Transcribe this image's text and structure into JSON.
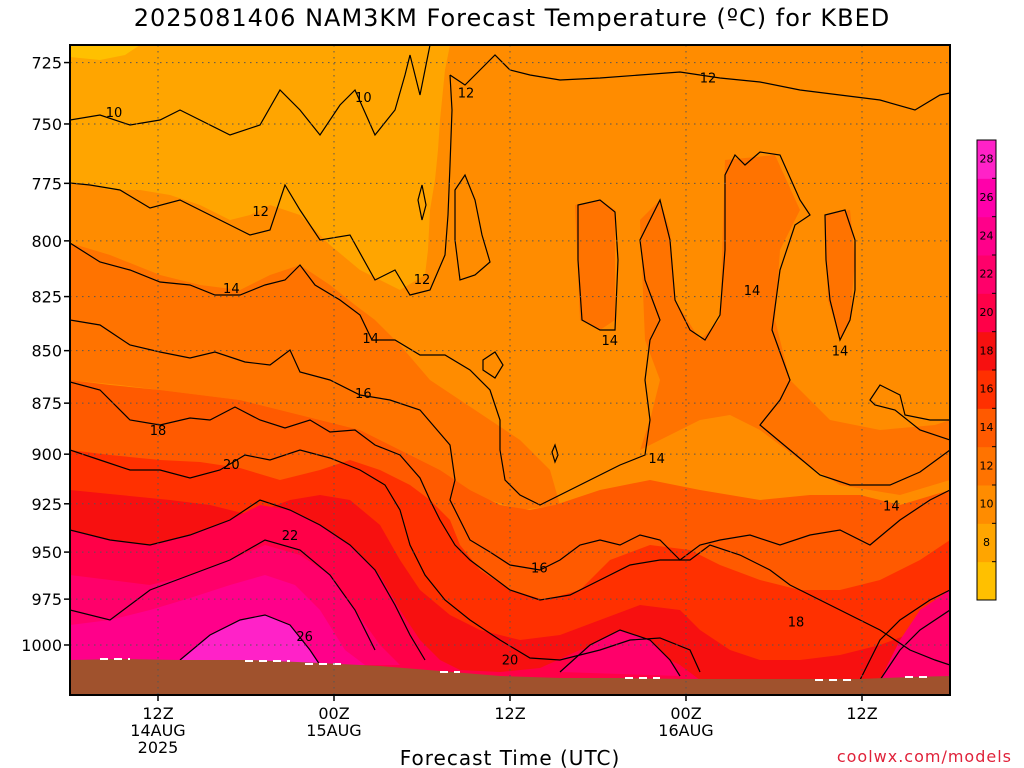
{
  "title": "2025081406 NAM3KM Forecast Temperature (ºC) for KBED",
  "credit": "coolwx.com/models",
  "chart_data": {
    "type": "heatmap",
    "title": "2025081406 NAM3KM Forecast Temperature (ºC) for KBED",
    "xlabel": "Forecast Time (UTC)",
    "ylabel": "",
    "x_unit": "forecast hour",
    "xlim": [
      0,
      60
    ],
    "ylim": [
      718,
      1028
    ],
    "y_scale": "log-pressure (hPa)",
    "y_ticks": [
      725,
      750,
      775,
      800,
      825,
      850,
      875,
      900,
      925,
      950,
      975,
      1000
    ],
    "x_ticks": [
      {
        "x": 6,
        "labels": [
          "12Z",
          "14AUG",
          "2025"
        ]
      },
      {
        "x": 18,
        "labels": [
          "00Z",
          "15AUG"
        ]
      },
      {
        "x": 30,
        "labels": [
          "12Z"
        ]
      },
      {
        "x": 42,
        "labels": [
          "00Z",
          "16AUG"
        ]
      },
      {
        "x": 54,
        "labels": [
          "12Z"
        ]
      }
    ],
    "grid": true,
    "colorbar": {
      "labels": [
        8,
        10,
        12,
        14,
        16,
        18,
        20,
        22,
        24,
        26,
        28
      ],
      "colors": [
        "#ffc000",
        "#ffa500",
        "#ff8c00",
        "#ff7300",
        "#ff5a00",
        "#ff3000",
        "#f71010",
        "#ff0048",
        "#ff006a",
        "#ff008a",
        "#ff00aa",
        "#ff22c8"
      ]
    },
    "contour_labels": [
      {
        "text": "10",
        "x": 3.0,
        "p": 745
      },
      {
        "text": "10",
        "x": 20.0,
        "p": 739
      },
      {
        "text": "12",
        "x": 27.0,
        "p": 737
      },
      {
        "text": "12",
        "x": 43.5,
        "p": 731
      },
      {
        "text": "12",
        "x": 13.0,
        "p": 787
      },
      {
        "text": "12",
        "x": 24.0,
        "p": 817
      },
      {
        "text": "14",
        "x": 11.0,
        "p": 821
      },
      {
        "text": "14",
        "x": 20.5,
        "p": 844
      },
      {
        "text": "14",
        "x": 36.8,
        "p": 845
      },
      {
        "text": "14",
        "x": 46.5,
        "p": 822
      },
      {
        "text": "14",
        "x": 52.5,
        "p": 850
      },
      {
        "text": "14",
        "x": 40.0,
        "p": 902
      },
      {
        "text": "14",
        "x": 56.0,
        "p": 926
      },
      {
        "text": "16",
        "x": 20.0,
        "p": 870
      },
      {
        "text": "16",
        "x": 32.0,
        "p": 958
      },
      {
        "text": "18",
        "x": 6.0,
        "p": 888
      },
      {
        "text": "18",
        "x": 49.5,
        "p": 987
      },
      {
        "text": "20",
        "x": 11.0,
        "p": 905
      },
      {
        "text": "20",
        "x": 30.0,
        "p": 1008
      },
      {
        "text": "22",
        "x": 15.0,
        "p": 941
      },
      {
        "text": "26",
        "x": 16.0,
        "p": 995
      }
    ]
  }
}
